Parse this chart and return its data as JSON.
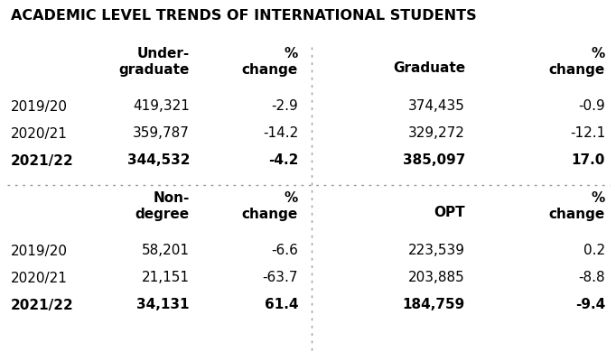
{
  "title": "ACADEMIC LEVEL TRENDS OF INTERNATIONAL STUDENTS",
  "title_fontsize": 11.5,
  "title_fontweight": "bold",
  "background_color": "#ffffff",
  "text_color": "#000000",
  "sections": {
    "top_left": {
      "col_headers": [
        "Under-\ngraduate",
        "%\nchange"
      ],
      "rows": [
        {
          "year": "2019/20",
          "value": "419,321",
          "pct": "-2.9",
          "bold": false
        },
        {
          "year": "2020/21",
          "value": "359,787",
          "pct": "-14.2",
          "bold": false
        },
        {
          "year": "2021/22",
          "value": "344,532",
          "pct": "-4.2",
          "bold": true
        }
      ]
    },
    "top_right": {
      "col_headers": [
        "Graduate",
        "%\nchange"
      ],
      "rows": [
        {
          "year": "2019/20",
          "value": "374,435",
          "pct": "-0.9",
          "bold": false
        },
        {
          "year": "2020/21",
          "value": "329,272",
          "pct": "-12.1",
          "bold": false
        },
        {
          "year": "2021/22",
          "value": "385,097",
          "pct": "17.0",
          "bold": true
        }
      ]
    },
    "bottom_left": {
      "col_headers": [
        "Non-\ndegree",
        "%\nchange"
      ],
      "rows": [
        {
          "year": "2019/20",
          "value": "58,201",
          "pct": "-6.6",
          "bold": false
        },
        {
          "year": "2020/21",
          "value": "21,151",
          "pct": "-63.7",
          "bold": false
        },
        {
          "year": "2021/22",
          "value": "34,131",
          "pct": "61.4",
          "bold": true
        }
      ]
    },
    "bottom_right": {
      "col_headers": [
        "OPT",
        "%\nchange"
      ],
      "rows": [
        {
          "year": "2019/20",
          "value": "223,539",
          "pct": "0.2",
          "bold": false
        },
        {
          "year": "2020/21",
          "value": "203,885",
          "pct": "-8.8",
          "bold": false
        },
        {
          "year": "2021/22",
          "value": "184,759",
          "pct": "-9.4",
          "bold": true
        }
      ]
    }
  },
  "divider_color": "#999999",
  "header_fontsize": 11.0,
  "data_fontsize": 11.0,
  "font_family": "DejaVu Sans"
}
